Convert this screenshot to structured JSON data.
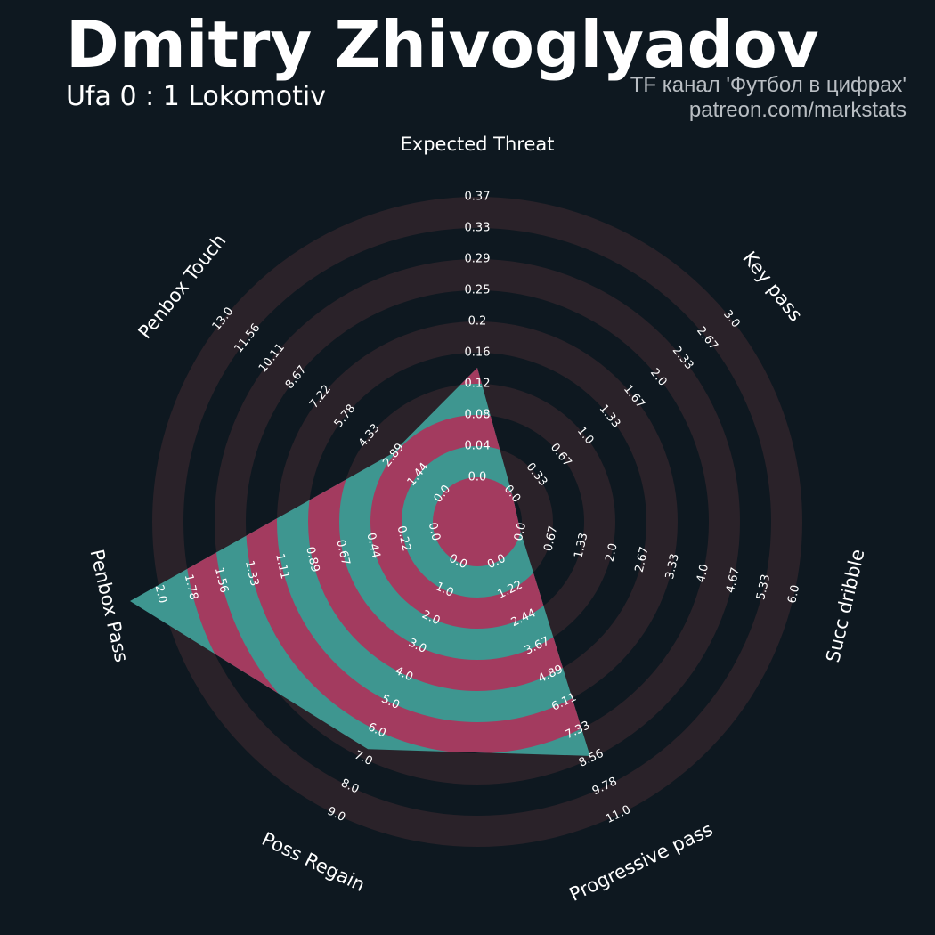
{
  "header": {
    "title": "Dmitry Zhivoglyadov",
    "subtitle": "Ufa 0 : 1 Lokomotiv",
    "credit_line_1": "TF канал 'Футбол в цифрах'",
    "credit_line_2": "patreon.com/markstats"
  },
  "colors": {
    "background": "#0e1820",
    "ring_band": "#2a2229",
    "player_fill": "#3e9690",
    "player_ring_alt": "#a33b5f",
    "label_text": "#ffffff"
  },
  "chart_data": {
    "type": "radar",
    "title": "Dmitry Zhivoglyadov",
    "subtitle": "Ufa 0 : 1 Lokomotiv",
    "grid": true,
    "axes": [
      {
        "name": "Expected Threat",
        "min": 0.0,
        "max": 0.37,
        "ticks": [
          "0.0",
          "0.04",
          "0.08",
          "0.12",
          "0.16",
          "0.2",
          "0.25",
          "0.29",
          "0.33",
          "0.37"
        ]
      },
      {
        "name": "Key pass",
        "min": 0.0,
        "max": 3.0,
        "ticks": [
          "0.0",
          "0.33",
          "0.67",
          "1.0",
          "1.33",
          "1.67",
          "2.0",
          "2.33",
          "2.67",
          "3.0"
        ]
      },
      {
        "name": "Succ dribble",
        "min": 0.0,
        "max": 6.0,
        "ticks": [
          "0.0",
          "0.67",
          "1.33",
          "2.0",
          "2.67",
          "3.33",
          "4.0",
          "4.67",
          "5.33",
          "6.0"
        ]
      },
      {
        "name": "Progressive pass",
        "min": 0.0,
        "max": 11.0,
        "ticks": [
          "0.0",
          "1.22",
          "2.44",
          "3.67",
          "4.89",
          "6.11",
          "7.33",
          "8.56",
          "9.78",
          "11.0"
        ]
      },
      {
        "name": "Poss Regain",
        "min": 0.0,
        "max": 9.0,
        "ticks": [
          "0.0",
          "1.0",
          "2.0",
          "3.0",
          "4.0",
          "5.0",
          "6.0",
          "7.0",
          "8.0",
          "9.0"
        ]
      },
      {
        "name": "Penbox Pass",
        "min": 0.0,
        "max": 2.0,
        "ticks": [
          "0.0",
          "0.22",
          "0.44",
          "0.67",
          "0.89",
          "1.11",
          "1.33",
          "1.56",
          "1.78",
          "2.0"
        ]
      },
      {
        "name": "Penbox Touch",
        "min": 0.0,
        "max": 13.0,
        "ticks": [
          "0.0",
          "1.44",
          "2.89",
          "4.33",
          "5.78",
          "7.22",
          "8.67",
          "10.11",
          "11.56",
          "13.0"
        ]
      }
    ],
    "series": [
      {
        "values": [
          0.13,
          0.0,
          0.0,
          7.6,
          6.0,
          2.0,
          2.7
        ]
      }
    ]
  }
}
